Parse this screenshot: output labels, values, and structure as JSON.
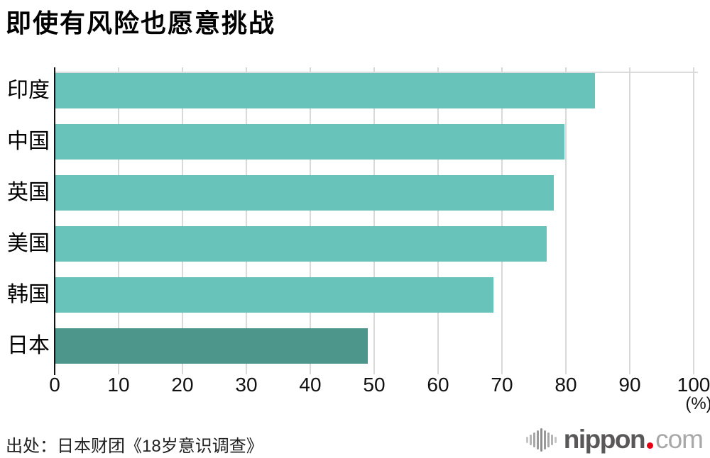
{
  "title": "即使有风险也愿意挑战",
  "chart_data": {
    "type": "bar",
    "orientation": "horizontal",
    "title": "即使有风险也愿意挑战",
    "categories": [
      "印度",
      "中国",
      "英国",
      "美国",
      "韩国",
      "日本"
    ],
    "values": [
      84.5,
      79.8,
      78.1,
      77.0,
      68.7,
      49.0
    ],
    "x_ticks": [
      0,
      10,
      20,
      30,
      40,
      50,
      60,
      70,
      80,
      90,
      100
    ],
    "xlim": [
      0,
      100
    ],
    "unit_label": "(%)",
    "grid": true,
    "legend": "none",
    "bar_color": "#68c4ba",
    "highlight_category": "日本",
    "highlight_color": "#4d968c",
    "gridline_color": "#d9d9d9",
    "axis_color": "#111111"
  },
  "footer": {
    "source": "出处：日本财团《18岁意识调查》",
    "logo": {
      "icon": "soundwave-icon",
      "name": "nippon",
      "dot_color": "#e60012",
      "tld": "com"
    }
  }
}
